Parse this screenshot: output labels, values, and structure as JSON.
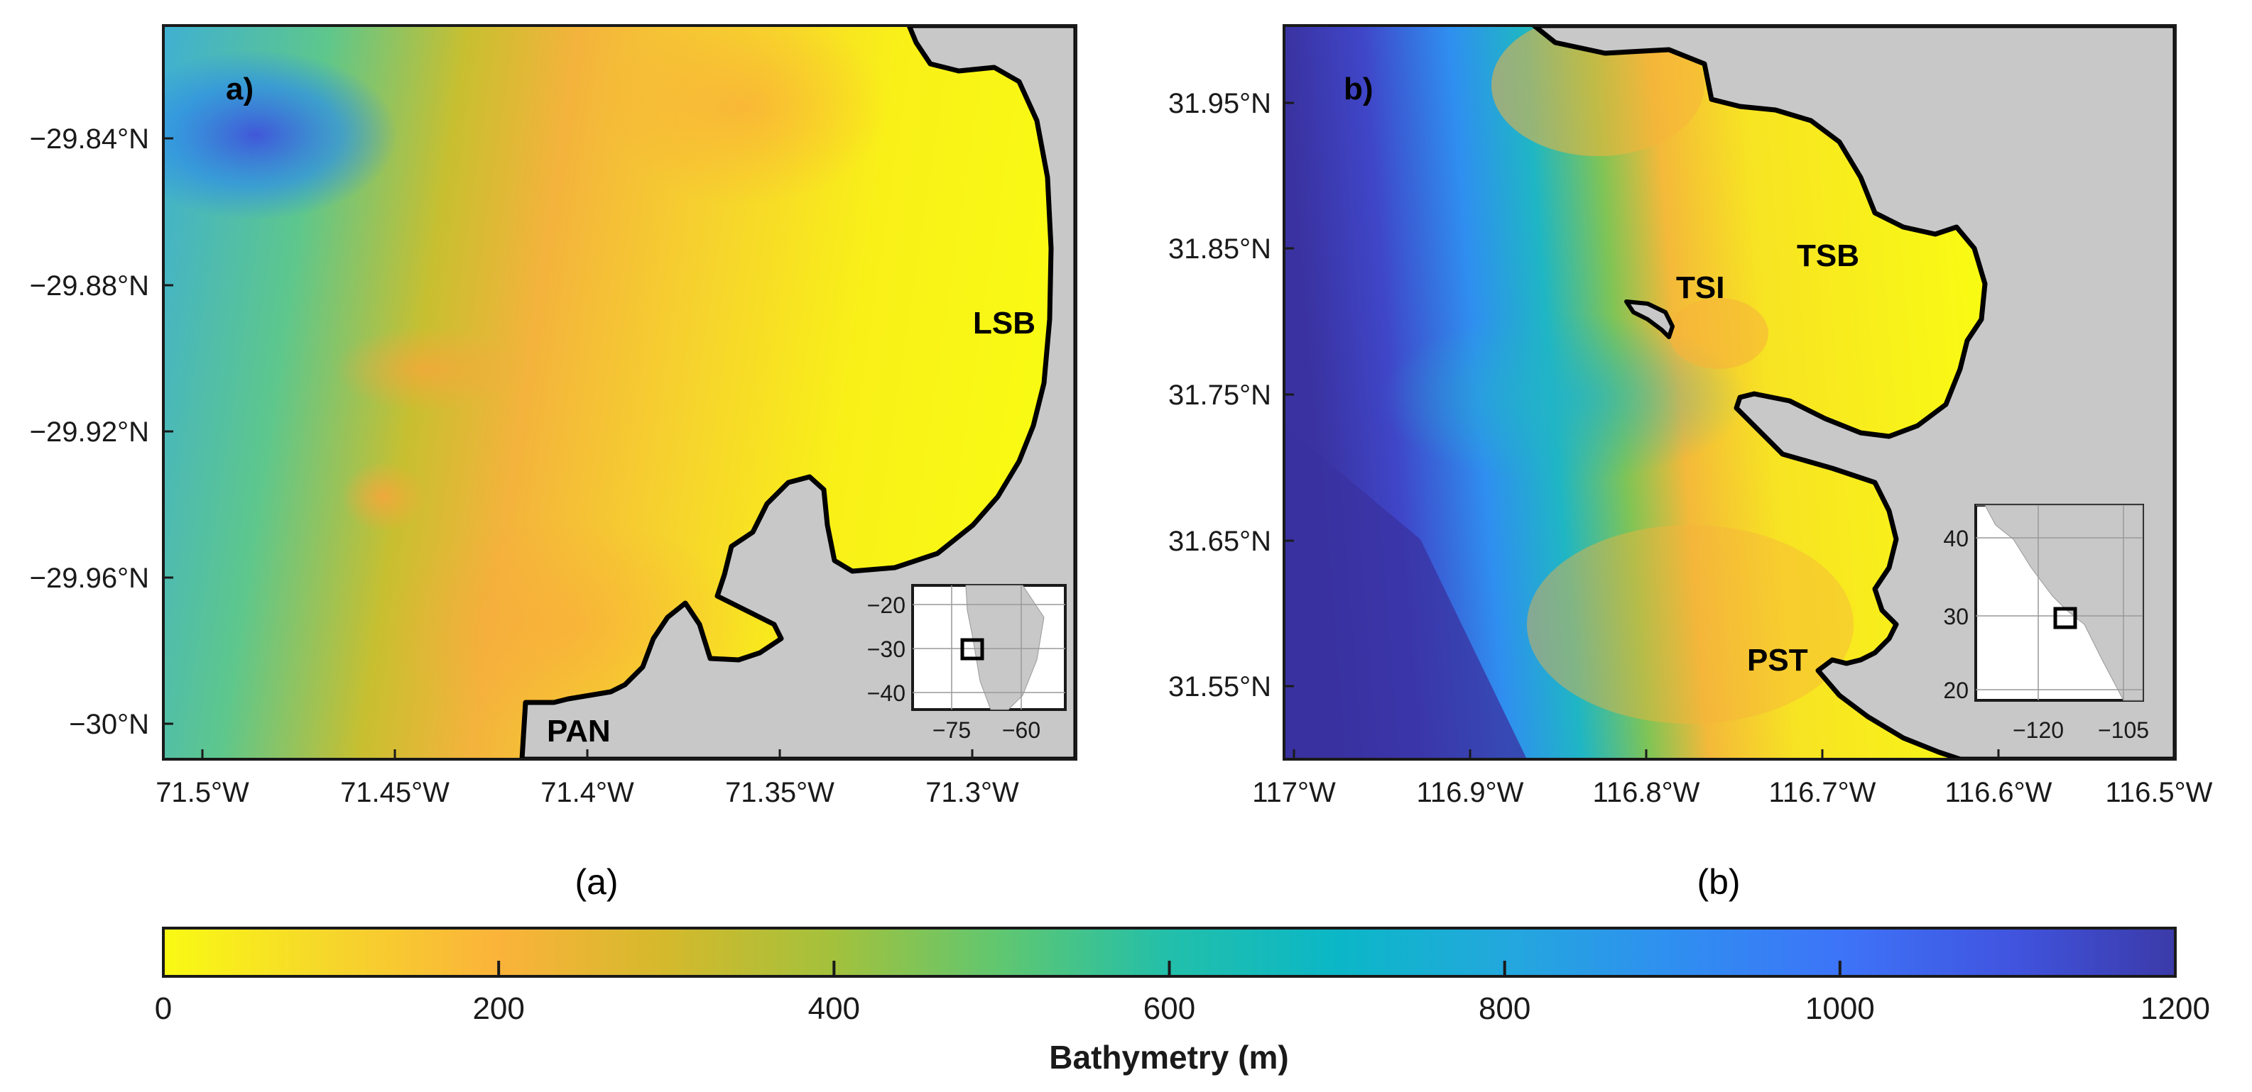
{
  "panels": {
    "a": {
      "label": "a)",
      "caption": "(a)",
      "lat_ticks": [
        "−29.84°N",
        "−29.88°N",
        "−29.92°N",
        "−29.96°N",
        "−30°N"
      ],
      "lon_ticks": [
        "71.5°W",
        "71.45°W",
        "71.4°W",
        "71.35°W",
        "71.3°W"
      ],
      "places": [
        {
          "name": "LSB"
        },
        {
          "name": "PAN"
        }
      ],
      "inset": {
        "y_ticks": [
          "−20",
          "−30",
          "−40"
        ],
        "x_ticks": [
          "−75",
          "−60"
        ]
      }
    },
    "b": {
      "label": "b)",
      "caption": "(b)",
      "lat_ticks": [
        "31.95°N",
        "31.85°N",
        "31.75°N",
        "31.65°N",
        "31.55°N"
      ],
      "lon_ticks": [
        "117°W",
        "116.9°W",
        "116.8°W",
        "116.7°W",
        "116.6°W",
        "116.5°W"
      ],
      "places": [
        {
          "name": "TSI"
        },
        {
          "name": "TSB"
        },
        {
          "name": "PST"
        }
      ],
      "inset": {
        "y_ticks": [
          "40",
          "30",
          "20"
        ],
        "x_ticks": [
          "−120",
          "−105"
        ]
      }
    }
  },
  "colorbar": {
    "title": "Bathymetry (m)",
    "min": 0,
    "max": 1200,
    "tick_labels": [
      "0",
      "200",
      "400",
      "600",
      "800",
      "1000",
      "1200"
    ],
    "colors": [
      "#f9fa14",
      "#f6d62b",
      "#fbb33a",
      "#d4b92c",
      "#a3c13c",
      "#5fc771",
      "#22bfaa",
      "#0bb7c7",
      "#23a8dd",
      "#2f8ff0",
      "#3d74f8",
      "#4055e0",
      "#3b3aa8"
    ]
  },
  "colors": {
    "land": "#c8c8c8",
    "coast": "#000000",
    "shallow": "#f9fa14",
    "deep": "#3b3aa8"
  }
}
